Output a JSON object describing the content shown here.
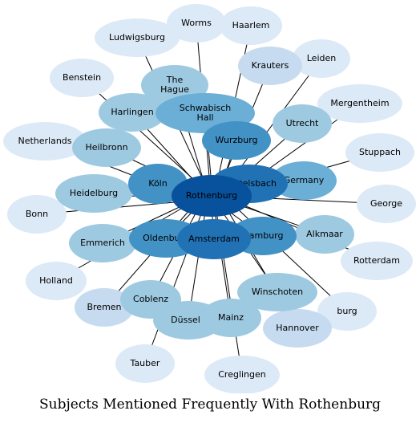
{
  "title": "Subjects Mentioned Frequently With Rothenburg",
  "palette": {
    "c1": "#dce9f6",
    "c2": "#c6dbef",
    "c3": "#9ecae1",
    "c4": "#6baed6",
    "c5": "#4292c6",
    "c6": "#2171b5",
    "c7": "#08519c"
  },
  "center": "rothenburg",
  "nodes": [
    {
      "id": "ludwigsburg",
      "label": "Ludwigsburg",
      "color": "#dce9f6"
    },
    {
      "id": "worms",
      "label": "Worms",
      "color": "#dce9f6"
    },
    {
      "id": "haarlem",
      "label": "Haarlem",
      "color": "#dce9f6"
    },
    {
      "id": "benstein",
      "label": "Benstein",
      "color": "#dce9f6"
    },
    {
      "id": "krauters",
      "label": "Krauters",
      "color": "#c6dbef"
    },
    {
      "id": "leiden",
      "label": "Leiden",
      "color": "#dce9f6"
    },
    {
      "id": "the-hague",
      "label": "The\nHague",
      "color": "#9ecae1"
    },
    {
      "id": "mergentheim",
      "label": "Mergentheim",
      "color": "#dce9f6"
    },
    {
      "id": "harlingen",
      "label": "Harlingen",
      "color": "#9ecae1"
    },
    {
      "id": "schwabisch-hall",
      "label": "Schwabisch\nHall",
      "color": "#6baed6"
    },
    {
      "id": "utrecht",
      "label": "Utrecht",
      "color": "#9ecae1"
    },
    {
      "id": "netherlands",
      "label": "Netherlands",
      "color": "#dce9f6"
    },
    {
      "id": "heilbronn",
      "label": "Heilbronn",
      "color": "#9ecae1"
    },
    {
      "id": "wurzburg",
      "label": "Wurzburg",
      "color": "#4292c6"
    },
    {
      "id": "stuppach",
      "label": "Stuppach",
      "color": "#dce9f6"
    },
    {
      "id": "koln",
      "label": "Köln",
      "color": "#4292c6"
    },
    {
      "id": "beutelsbach",
      "label": "Beutelsbach",
      "color": "#2171b5"
    },
    {
      "id": "germany",
      "label": "Germany",
      "color": "#6baed6"
    },
    {
      "id": "heidelburg",
      "label": "Heidelburg",
      "color": "#9ecae1"
    },
    {
      "id": "george",
      "label": "George",
      "color": "#dce9f6"
    },
    {
      "id": "bonn",
      "label": "Bonn",
      "color": "#dce9f6"
    },
    {
      "id": "amsterdam",
      "label": "Amsterdam",
      "color": "#2171b5"
    },
    {
      "id": "alkmaar",
      "label": "Alkmaar",
      "color": "#9ecae1"
    },
    {
      "id": "emmerich",
      "label": "Emmerich",
      "color": "#9ecae1"
    },
    {
      "id": "oldenburg",
      "label": "Oldenburg",
      "color": "#4292c6"
    },
    {
      "id": "hamburg",
      "label": "Hamburg",
      "color": "#4292c6"
    },
    {
      "id": "rotterdam",
      "label": "Rotterdam",
      "color": "#dce9f6"
    },
    {
      "id": "holland",
      "label": "Holland",
      "color": "#dce9f6"
    },
    {
      "id": "winschoten",
      "label": "Winschoten",
      "color": "#9ecae1"
    },
    {
      "id": "coblenz",
      "label": "Coblenz",
      "color": "#9ecae1"
    },
    {
      "id": "bremen",
      "label": "Bremen",
      "color": "#c6dbef"
    },
    {
      "id": "burg",
      "label": "burg",
      "color": "#dce9f6"
    },
    {
      "id": "dusseld",
      "label": "Düsseld",
      "color": "#9ecae1"
    },
    {
      "id": "mainz",
      "label": "Mainz",
      "color": "#9ecae1"
    },
    {
      "id": "hannover",
      "label": "Hannover",
      "color": "#c6dbef"
    },
    {
      "id": "tauber",
      "label": "Tauber",
      "color": "#dce9f6"
    },
    {
      "id": "creglingen",
      "label": "Creglingen",
      "color": "#dce9f6"
    },
    {
      "id": "rothenburg",
      "label": "Rothenburg",
      "color": "#08519c"
    }
  ]
}
